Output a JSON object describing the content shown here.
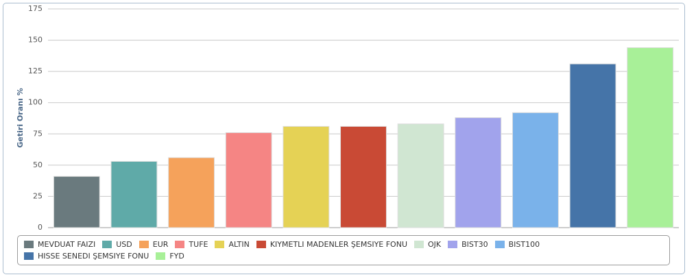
{
  "chart_data": {
    "type": "bar",
    "y_label": "Getiri Oranı %",
    "ylim": [
      0,
      175
    ],
    "yticks": [
      0,
      25,
      50,
      75,
      100,
      125,
      150,
      175
    ],
    "grid": true,
    "legend": "bottom",
    "series": [
      {
        "name": "MEVDUAT FAIZI",
        "color": "#6a7a7e",
        "values": [
          41
        ]
      },
      {
        "name": "USD",
        "color": "#5faaa8",
        "values": [
          53
        ]
      },
      {
        "name": "EUR",
        "color": "#f5a25b",
        "values": [
          56
        ]
      },
      {
        "name": "TUFE",
        "color": "#f58584",
        "values": [
          76
        ]
      },
      {
        "name": "ALTIN",
        "color": "#e5d255",
        "values": [
          81
        ]
      },
      {
        "name": "KIYMETLI MADENLER ŞEMSIYE FONU",
        "color": "#c94a35",
        "values": [
          81
        ]
      },
      {
        "name": "OJK",
        "color": "#d0e6d2",
        "values": [
          83
        ]
      },
      {
        "name": "BIST30",
        "color": "#a1a3ec",
        "values": [
          88
        ]
      },
      {
        "name": "BIST100",
        "color": "#7ab2ea",
        "values": [
          92
        ]
      },
      {
        "name": "HISSE SENEDI ŞEMSIYE FONU",
        "color": "#4574a8",
        "values": [
          131
        ]
      },
      {
        "name": "FYD",
        "color": "#a8f098",
        "values": [
          144
        ]
      }
    ]
  }
}
